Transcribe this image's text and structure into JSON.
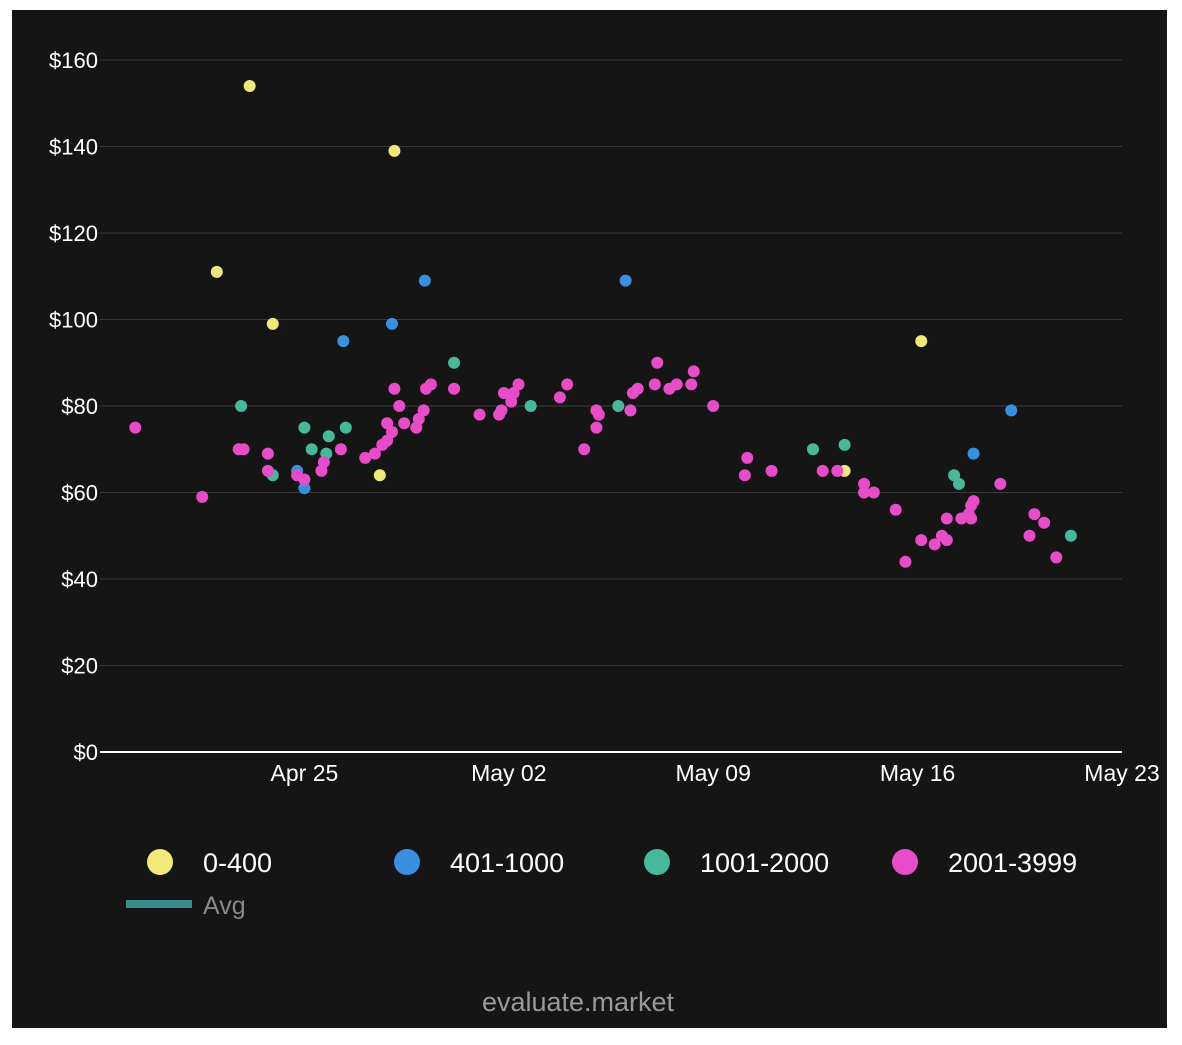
{
  "watermark": "evaluate.market",
  "chart_data": {
    "type": "scatter",
    "title": "",
    "xlabel": "",
    "ylabel": "",
    "ylim": [
      0,
      160
    ],
    "xlim": [
      "2024-04-18",
      "2024-05-23"
    ],
    "y_ticks": [
      {
        "value": 160,
        "label": "$160"
      },
      {
        "value": 140,
        "label": "$140"
      },
      {
        "value": 120,
        "label": "$120"
      },
      {
        "value": 100,
        "label": "$100"
      },
      {
        "value": 80,
        "label": "$80"
      },
      {
        "value": 60,
        "label": "$60"
      },
      {
        "value": 40,
        "label": "$40"
      },
      {
        "value": 20,
        "label": "$20"
      },
      {
        "value": 0,
        "label": "$0"
      }
    ],
    "x_ticks": [
      {
        "value": "2024-04-25",
        "label": "Apr 25"
      },
      {
        "value": "2024-05-02",
        "label": "May 02"
      },
      {
        "value": "2024-05-09",
        "label": "May 09"
      },
      {
        "value": "2024-05-16",
        "label": "May 16"
      },
      {
        "value": "2024-05-23",
        "label": "May 23"
      }
    ],
    "grid": true,
    "legend_position": "bottom",
    "avg_line": {
      "name": "Avg",
      "color": "#3a8c8c"
    },
    "series": [
      {
        "name": "0-400",
        "color": "#f0e878",
        "points": [
          {
            "x": "2024-04-22 00:00",
            "y": 111
          },
          {
            "x": "2024-04-23 03:00",
            "y": 154
          },
          {
            "x": "2024-04-23 22:00",
            "y": 99
          },
          {
            "x": "2024-04-27 14:00",
            "y": 64
          },
          {
            "x": "2024-04-28 02:00",
            "y": 139
          },
          {
            "x": "2024-05-13 12:00",
            "y": 65
          },
          {
            "x": "2024-05-16 03:00",
            "y": 95
          }
        ]
      },
      {
        "name": "401-1000",
        "color": "#3a90e0",
        "points": [
          {
            "x": "2024-04-24 18:00",
            "y": 65
          },
          {
            "x": "2024-04-25 00:00",
            "y": 61
          },
          {
            "x": "2024-04-26 08:00",
            "y": 95
          },
          {
            "x": "2024-04-28 00:00",
            "y": 99
          },
          {
            "x": "2024-04-29 03:00",
            "y": 109
          },
          {
            "x": "2024-05-06 00:00",
            "y": 109
          },
          {
            "x": "2024-05-17 22:00",
            "y": 69
          },
          {
            "x": "2024-05-19 05:00",
            "y": 79
          }
        ]
      },
      {
        "name": "1001-2000",
        "color": "#48b89a",
        "points": [
          {
            "x": "2024-04-22 20:00",
            "y": 80
          },
          {
            "x": "2024-04-23 22:00",
            "y": 64
          },
          {
            "x": "2024-04-25 00:00",
            "y": 75
          },
          {
            "x": "2024-04-25 06:00",
            "y": 70
          },
          {
            "x": "2024-04-25 20:00",
            "y": 73
          },
          {
            "x": "2024-04-26 10:00",
            "y": 75
          },
          {
            "x": "2024-04-25 18:00",
            "y": 69
          },
          {
            "x": "2024-04-30 03:00",
            "y": 90
          },
          {
            "x": "2024-05-02 18:00",
            "y": 80
          },
          {
            "x": "2024-05-05 18:00",
            "y": 80
          },
          {
            "x": "2024-05-12 10:00",
            "y": 70
          },
          {
            "x": "2024-05-13 12:00",
            "y": 71
          },
          {
            "x": "2024-05-17 06:00",
            "y": 64
          },
          {
            "x": "2024-05-17 10:00",
            "y": 62
          },
          {
            "x": "2024-05-21 06:00",
            "y": 50
          }
        ]
      },
      {
        "name": "2001-3999",
        "color": "#e84cc8",
        "points": [
          {
            "x": "2024-04-19 05:00",
            "y": 75
          },
          {
            "x": "2024-04-21 12:00",
            "y": 59
          },
          {
            "x": "2024-04-22 18:00",
            "y": 70
          },
          {
            "x": "2024-04-22 22:00",
            "y": 70
          },
          {
            "x": "2024-04-23 18:00",
            "y": 69
          },
          {
            "x": "2024-04-23 18:00",
            "y": 65
          },
          {
            "x": "2024-04-24 18:00",
            "y": 64
          },
          {
            "x": "2024-04-25 00:00",
            "y": 63
          },
          {
            "x": "2024-04-25 14:00",
            "y": 65
          },
          {
            "x": "2024-04-25 16:00",
            "y": 67
          },
          {
            "x": "2024-04-26 06:00",
            "y": 70
          },
          {
            "x": "2024-04-27 02:00",
            "y": 68
          },
          {
            "x": "2024-04-27 10:00",
            "y": 69
          },
          {
            "x": "2024-04-27 16:00",
            "y": 71
          },
          {
            "x": "2024-04-27 20:00",
            "y": 72
          },
          {
            "x": "2024-04-28 00:00",
            "y": 74
          },
          {
            "x": "2024-04-27 20:00",
            "y": 76
          },
          {
            "x": "2024-04-28 02:00",
            "y": 84
          },
          {
            "x": "2024-04-28 06:00",
            "y": 80
          },
          {
            "x": "2024-04-28 10:00",
            "y": 76
          },
          {
            "x": "2024-04-28 20:00",
            "y": 75
          },
          {
            "x": "2024-04-28 22:00",
            "y": 77
          },
          {
            "x": "2024-04-29 02:00",
            "y": 79
          },
          {
            "x": "2024-04-29 04:00",
            "y": 84
          },
          {
            "x": "2024-04-29 08:00",
            "y": 85
          },
          {
            "x": "2024-04-30 03:00",
            "y": 84
          },
          {
            "x": "2024-05-01 00:00",
            "y": 78
          },
          {
            "x": "2024-05-01 16:00",
            "y": 78
          },
          {
            "x": "2024-05-01 18:00",
            "y": 79
          },
          {
            "x": "2024-05-01 20:00",
            "y": 83
          },
          {
            "x": "2024-05-02 02:00",
            "y": 81
          },
          {
            "x": "2024-05-02 04:00",
            "y": 83
          },
          {
            "x": "2024-05-02 08:00",
            "y": 85
          },
          {
            "x": "2024-05-03 18:00",
            "y": 82
          },
          {
            "x": "2024-05-04 00:00",
            "y": 85
          },
          {
            "x": "2024-05-04 14:00",
            "y": 70
          },
          {
            "x": "2024-05-05 00:00",
            "y": 75
          },
          {
            "x": "2024-05-05 00:00",
            "y": 79
          },
          {
            "x": "2024-05-05 02:00",
            "y": 78
          },
          {
            "x": "2024-05-06 04:00",
            "y": 79
          },
          {
            "x": "2024-05-06 06:00",
            "y": 83
          },
          {
            "x": "2024-05-06 10:00",
            "y": 84
          },
          {
            "x": "2024-05-07 00:00",
            "y": 85
          },
          {
            "x": "2024-05-07 02:00",
            "y": 90
          },
          {
            "x": "2024-05-07 12:00",
            "y": 84
          },
          {
            "x": "2024-05-07 18:00",
            "y": 85
          },
          {
            "x": "2024-05-08 06:00",
            "y": 85
          },
          {
            "x": "2024-05-08 08:00",
            "y": 88
          },
          {
            "x": "2024-05-09 00:00",
            "y": 80
          },
          {
            "x": "2024-05-10 02:00",
            "y": 64
          },
          {
            "x": "2024-05-10 04:00",
            "y": 68
          },
          {
            "x": "2024-05-11 00:00",
            "y": 65
          },
          {
            "x": "2024-05-12 18:00",
            "y": 65
          },
          {
            "x": "2024-05-13 06:00",
            "y": 65
          },
          {
            "x": "2024-05-14 04:00",
            "y": 62
          },
          {
            "x": "2024-05-14 04:00",
            "y": 60
          },
          {
            "x": "2024-05-14 12:00",
            "y": 60
          },
          {
            "x": "2024-05-15 06:00",
            "y": 56
          },
          {
            "x": "2024-05-15 14:00",
            "y": 44
          },
          {
            "x": "2024-05-16 14:00",
            "y": 48
          },
          {
            "x": "2024-05-16 03:00",
            "y": 49
          },
          {
            "x": "2024-05-16 20:00",
            "y": 50
          },
          {
            "x": "2024-05-17 00:00",
            "y": 49
          },
          {
            "x": "2024-05-17 00:00",
            "y": 54
          },
          {
            "x": "2024-05-17 12:00",
            "y": 54
          },
          {
            "x": "2024-05-17 18:00",
            "y": 55
          },
          {
            "x": "2024-05-17 20:00",
            "y": 57
          },
          {
            "x": "2024-05-17 22:00",
            "y": 58
          },
          {
            "x": "2024-05-17 20:00",
            "y": 54
          },
          {
            "x": "2024-05-18 20:00",
            "y": 62
          },
          {
            "x": "2024-05-19 20:00",
            "y": 50
          },
          {
            "x": "2024-05-20 00:00",
            "y": 55
          },
          {
            "x": "2024-05-20 08:00",
            "y": 53
          },
          {
            "x": "2024-05-20 18:00",
            "y": 45
          }
        ]
      }
    ]
  }
}
